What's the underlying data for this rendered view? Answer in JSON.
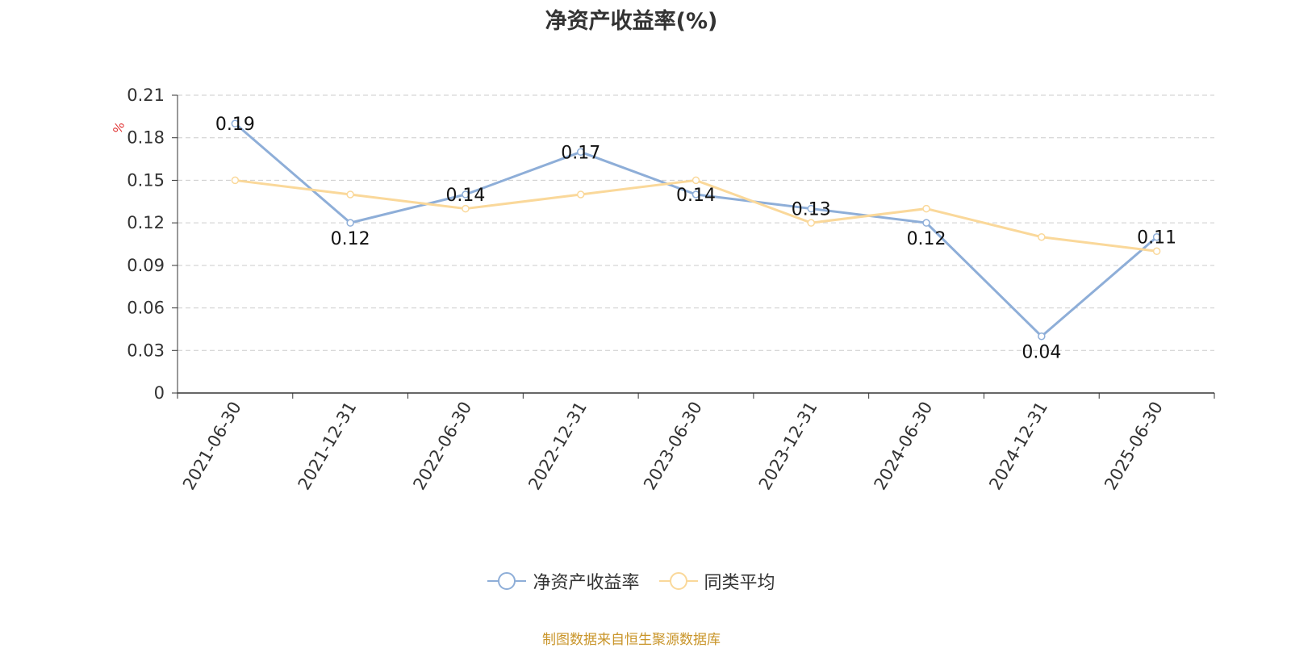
{
  "title": "净资产收益率(%)",
  "unit_label": "%",
  "source_note": "制图数据来自恒生聚源数据库",
  "colors": {
    "series1": "#8eaed8",
    "series2": "#fad89a",
    "grid": "#cccccc",
    "axis": "#333333"
  },
  "chart_data": {
    "type": "line",
    "title": "净资产收益率(%)",
    "xlabel": "",
    "ylabel": "%",
    "categories": [
      "2021-06-30",
      "2021-12-31",
      "2022-06-30",
      "2022-12-31",
      "2023-06-30",
      "2023-12-31",
      "2024-06-30",
      "2024-12-31",
      "2025-06-30"
    ],
    "yticks": [
      "0",
      "0.03",
      "0.06",
      "0.09",
      "0.12",
      "0.15",
      "0.18",
      "0.21"
    ],
    "ylim": [
      0,
      0.21
    ],
    "grid": true,
    "legend_position": "bottom",
    "series": [
      {
        "name": "净资产收益率",
        "values": [
          0.19,
          0.12,
          0.14,
          0.17,
          0.14,
          0.13,
          0.12,
          0.04,
          0.11
        ],
        "labels": [
          "0.19",
          "0.12",
          "0.14",
          "0.17",
          "0.14",
          "0.13",
          "0.12",
          "0.04",
          "0.11"
        ]
      },
      {
        "name": "同类平均",
        "values": [
          0.15,
          0.14,
          0.13,
          0.14,
          0.15,
          0.12,
          0.13,
          0.11,
          0.1
        ]
      }
    ]
  }
}
